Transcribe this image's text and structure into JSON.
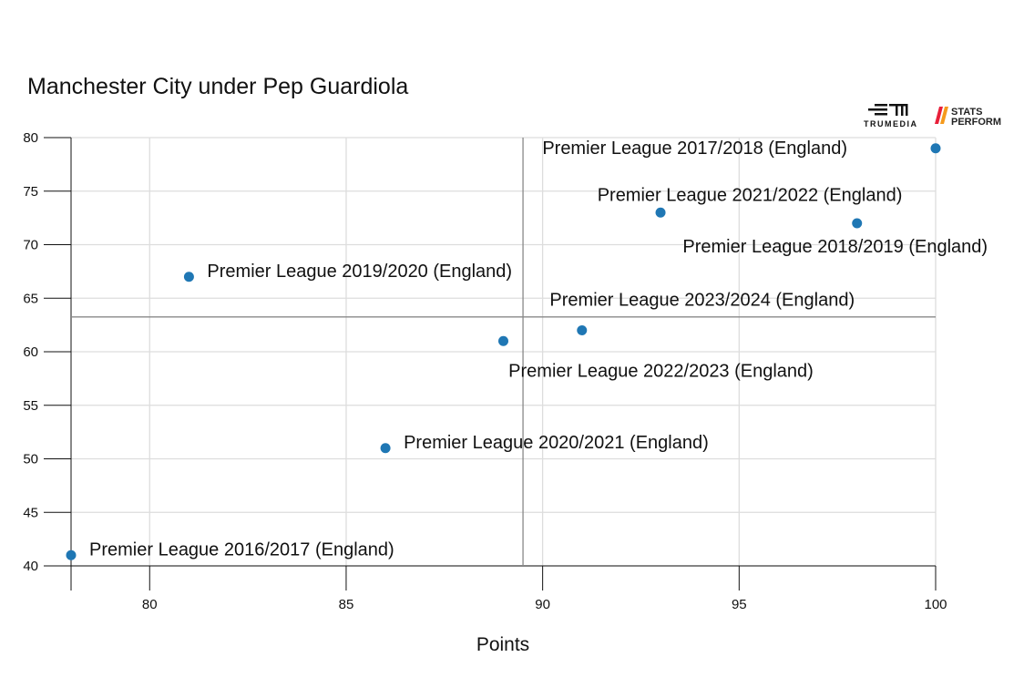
{
  "logos": {
    "trumedia": "TRUMEDIA",
    "stats_perform": "STATS PERFORM"
  },
  "chart_data": {
    "type": "scatter",
    "title": "Manchester City under Pep Guardiola",
    "xlabel": "Points",
    "ylabel": "",
    "xlim": [
      78,
      100
    ],
    "ylim": [
      40,
      80
    ],
    "xticks": [
      80,
      85,
      90,
      95,
      100
    ],
    "yticks": [
      40,
      45,
      50,
      55,
      60,
      65,
      70,
      75,
      80
    ],
    "grid": true,
    "reference_lines": {
      "x_mean": 89.5,
      "y_mean": 63.25
    },
    "point_color": "#1f77b4",
    "points": [
      {
        "x": 78,
        "y": 41,
        "label": "Premier League 2016/2017 (England)"
      },
      {
        "x": 100,
        "y": 79,
        "label": "Premier League 2017/2018 (England)"
      },
      {
        "x": 98,
        "y": 72,
        "label": "Premier League 2018/2019 (England)"
      },
      {
        "x": 81,
        "y": 67,
        "label": "Premier League 2019/2020 (England)"
      },
      {
        "x": 86,
        "y": 51,
        "label": "Premier League 2020/2021 (England)"
      },
      {
        "x": 93,
        "y": 73,
        "label": "Premier League 2021/2022 (England)"
      },
      {
        "x": 89,
        "y": 61,
        "label": "Premier League 2022/2023 (England)"
      },
      {
        "x": 91,
        "y": 62,
        "label": "Premier League 2023/2024 (England)"
      }
    ]
  }
}
